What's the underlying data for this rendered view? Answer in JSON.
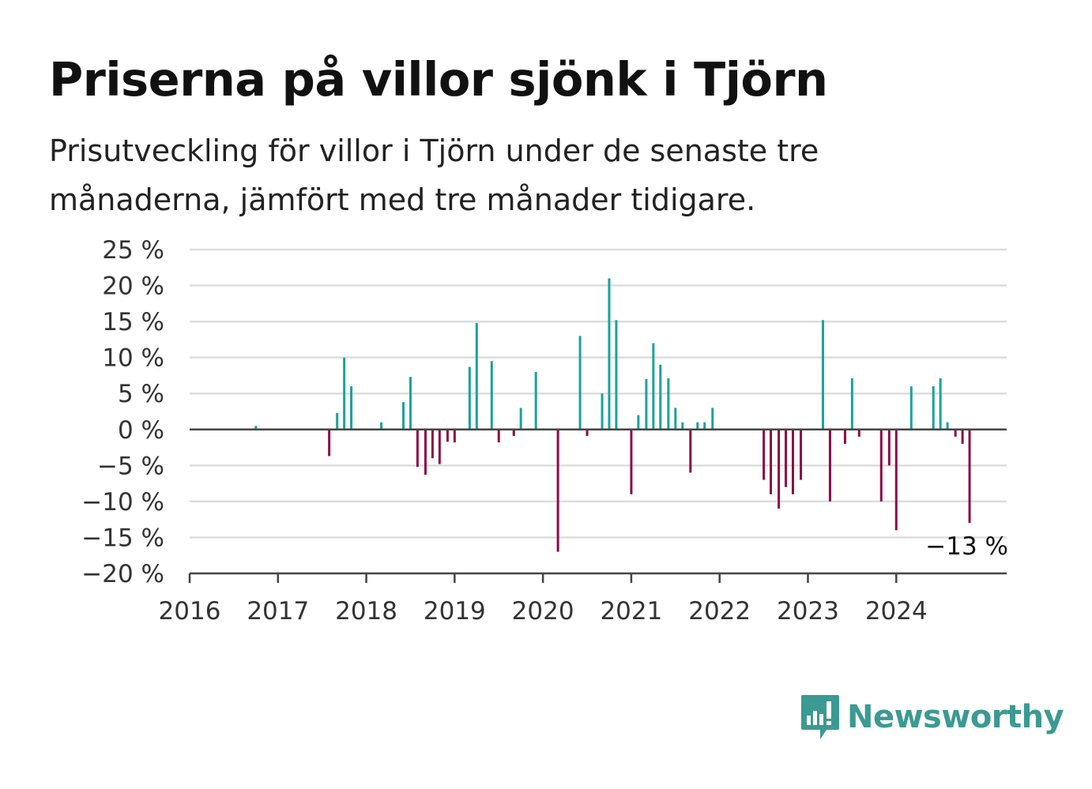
{
  "title": "Priserna på villor sjönk i Tjörn",
  "subtitle": "Prisutveckling för villor i Tjörn under de senaste tre månaderna, jämfört med tre månader tidigare.",
  "brand": {
    "name": "Newsworthy",
    "color": "#3b9a92",
    "icon": "bar-chart-speech-bubble-icon"
  },
  "colors": {
    "positive": "#1aa39a",
    "negative": "#8b0d45",
    "grid": "#dddddd",
    "axis": "#444444"
  },
  "chart_data": {
    "type": "bar",
    "ylim": [
      -20,
      25
    ],
    "yticks": [
      25,
      20,
      15,
      10,
      5,
      0,
      -5,
      -10,
      -15,
      -20
    ],
    "ytick_labels": [
      "25 %",
      "20 %",
      "15 %",
      "10 %",
      "5 %",
      "0 %",
      "−5 %",
      "−10 %",
      "−15 %",
      "−20 %"
    ],
    "xlim": [
      2016,
      2025.25
    ],
    "xticks": [
      "2016",
      "2017",
      "2018",
      "2019",
      "2020",
      "2021",
      "2022",
      "2023",
      "2024"
    ],
    "grid": true,
    "annotation": {
      "text": "−13 %",
      "x": 2024.83,
      "y": -13
    },
    "x": [
      2016.75,
      2017.58,
      2017.67,
      2017.75,
      2017.83,
      2018.17,
      2018.42,
      2018.5,
      2018.58,
      2018.67,
      2018.75,
      2018.83,
      2018.92,
      2019.0,
      2019.17,
      2019.25,
      2019.42,
      2019.5,
      2019.67,
      2019.75,
      2019.92,
      2020.17,
      2020.42,
      2020.5,
      2020.67,
      2020.75,
      2020.83,
      2021.0,
      2021.08,
      2021.17,
      2021.25,
      2021.33,
      2021.42,
      2021.5,
      2021.58,
      2021.67,
      2021.75,
      2021.83,
      2021.92,
      2022.5,
      2022.58,
      2022.67,
      2022.75,
      2022.83,
      2022.92,
      2023.17,
      2023.25,
      2023.42,
      2023.5,
      2023.58,
      2023.83,
      2023.92,
      2024.0,
      2024.17,
      2024.42,
      2024.5,
      2024.58,
      2024.67,
      2024.75,
      2024.83
    ],
    "values": [
      0.5,
      -3.7,
      2.3,
      10,
      6,
      1,
      3.8,
      7.3,
      -5.2,
      -6.3,
      -4,
      -4.8,
      -1.7,
      -1.8,
      8.7,
      14.8,
      9.5,
      -1.8,
      -0.9,
      3,
      8,
      -17,
      13,
      -0.9,
      5,
      21,
      15.2,
      -9,
      2,
      7,
      12,
      9,
      7.1,
      3,
      1,
      -6,
      1,
      1,
      3,
      -7,
      -9,
      -11,
      -8,
      -9,
      -7,
      15.2,
      -10,
      -2,
      7.1,
      -1,
      -10,
      -5,
      -14,
      6,
      6,
      7.1,
      1,
      -1,
      -2,
      -13
    ]
  }
}
